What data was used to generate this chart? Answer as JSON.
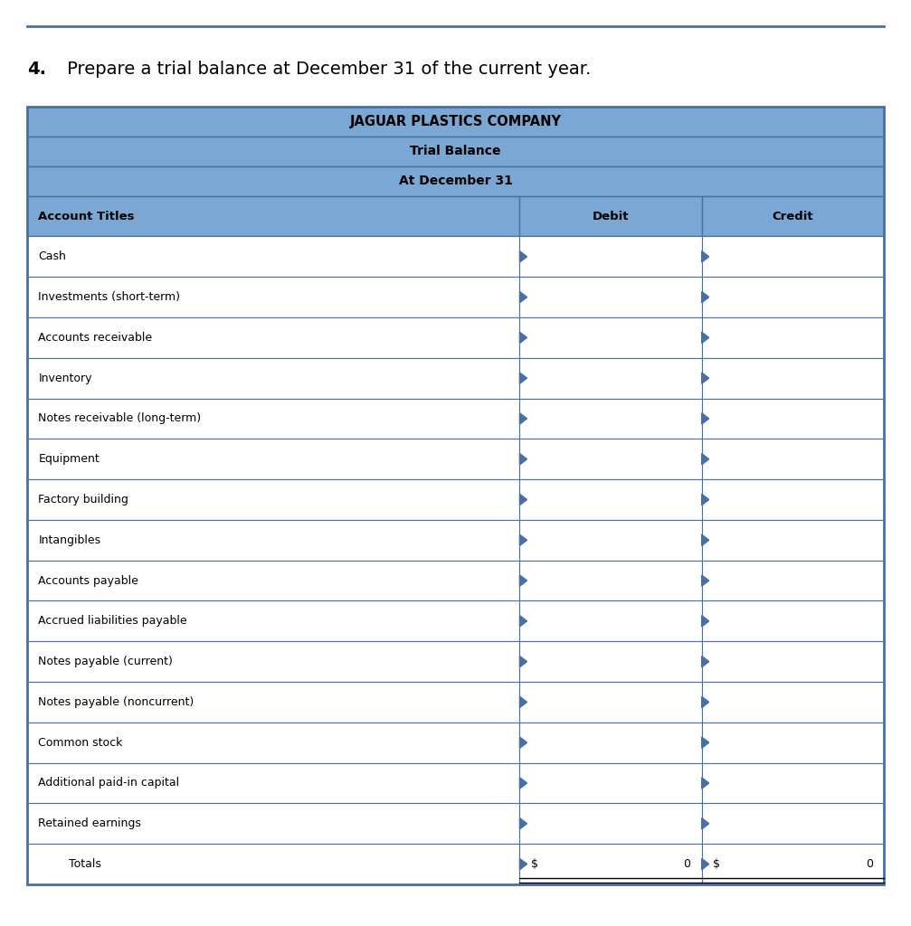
{
  "question_text_bold": "4.",
  "question_text": " Prepare a trial balance at December 31 of the current year.",
  "company_name": "JAGUAR PLASTICS COMPANY",
  "table_title1": "Trial Balance",
  "table_title2": "At December 31",
  "col_headers": [
    "Account Titles",
    "Debit",
    "Credit"
  ],
  "accounts": [
    "Cash",
    "Investments (short-term)",
    "Accounts receivable",
    "Inventory",
    "Notes receivable (long-term)",
    "Equipment",
    "Factory building",
    "Intangibles",
    "Accounts payable",
    "Accrued liabilities payable",
    "Notes payable (current)",
    "Notes payable (noncurrent)",
    "Common stock",
    "Additional paid-in capital",
    "Retained earnings"
  ],
  "totals_label": "Totals",
  "debit_total": "0",
  "credit_total": "0",
  "header_bg_color": "#7ba7d4",
  "header_text_color": "#000000",
  "row_bg_color": "#ffffff",
  "border_color": "#4a6fa5",
  "outer_border_color": "#4a6fa5",
  "question_font_size": 14,
  "background_color": "#ffffff",
  "top_bar_color": "#4a6fa5",
  "arrow_color": "#4a6fa5"
}
